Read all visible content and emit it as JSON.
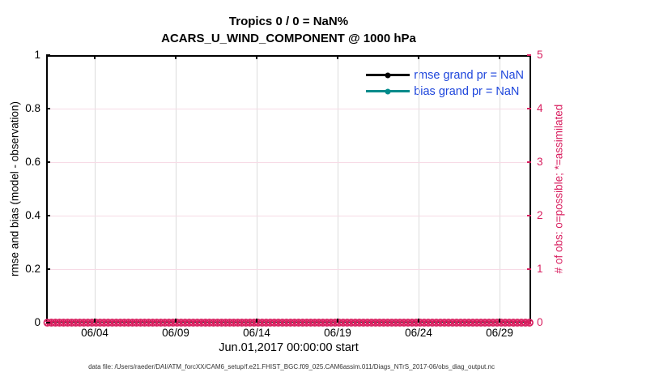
{
  "title": {
    "line1": "Tropics 0 / 0 = NaN%",
    "line2": "ACARS_U_WIND_COMPONENT @ 1000 hPa"
  },
  "axis_left": {
    "label": "rmse and bias (model - observation)",
    "ticks": [
      "1",
      "0.8",
      "0.6",
      "0.4",
      "0.2",
      "0"
    ],
    "color": "#000000"
  },
  "axis_right": {
    "label": "# of obs: o=possible; *=assimilated",
    "ticks": [
      "5",
      "4",
      "3",
      "2",
      "1",
      "0"
    ],
    "color": "#d81e5f"
  },
  "axis_x": {
    "ticks": [
      "06/04",
      "06/09",
      "06/14",
      "06/19",
      "06/24",
      "06/29"
    ],
    "label": "Jun.01,2017 00:00:00 start"
  },
  "legend": {
    "text_color": "#1e46dc",
    "items": [
      {
        "label": "rmse grand pr = NaN",
        "line_color": "#000000",
        "marker": "filled-circle"
      },
      {
        "label": "bias grand pr = NaN",
        "line_color": "#008b8b",
        "marker": "filled-circle"
      }
    ]
  },
  "footer": "data file: /Users/raeder/DAI/ATM_forcXX/CAM6_setup/f.e21.FHIST_BGC.f09_025.CAM6assim.011/Diags_NTrS_2017-06/obs_diag_output.nc",
  "colors": {
    "obs_pink": "#d81e5f",
    "grid_vertical": "#dcdcdc",
    "grid_horizontal": "#f7dbe6",
    "axis_black": "#000000"
  },
  "chart_data": {
    "type": "line",
    "title": "Tropics 0 / 0 = NaN%",
    "subtitle": "ACARS_U_WIND_COMPONENT @ 1000 hPa",
    "xlabel": "Jun.01,2017 00:00:00 start",
    "x_range": [
      "2017-06-01 00:00",
      "2017-07-01 00:00"
    ],
    "x_tick_labels": [
      "06/04",
      "06/09",
      "06/14",
      "06/19",
      "06/24",
      "06/29"
    ],
    "ylabel_left": "rmse and bias (model - observation)",
    "ylim_left": [
      0,
      1
    ],
    "yticks_left": [
      0,
      0.2,
      0.4,
      0.6,
      0.8,
      1
    ],
    "ylabel_right": "# of obs: o=possible; *=assimilated",
    "ylim_right": [
      0,
      5
    ],
    "yticks_right": [
      0,
      1,
      2,
      3,
      4,
      5
    ],
    "grid": true,
    "legend_position": "top-right",
    "series": [
      {
        "name": "rmse grand pr",
        "axis": "left",
        "color": "#000000",
        "value": "NaN",
        "points": []
      },
      {
        "name": "bias grand pr",
        "axis": "left",
        "color": "#008b8b",
        "value": "NaN",
        "points": []
      },
      {
        "name": "# of obs possible",
        "axis": "right",
        "marker": "o",
        "color": "#d81e5f",
        "n_points": 120,
        "constant_value": 0
      },
      {
        "name": "# of obs assimilated",
        "axis": "right",
        "marker": "*",
        "color": "#d81e5f",
        "n_points": 120,
        "constant_value": 0
      }
    ]
  }
}
